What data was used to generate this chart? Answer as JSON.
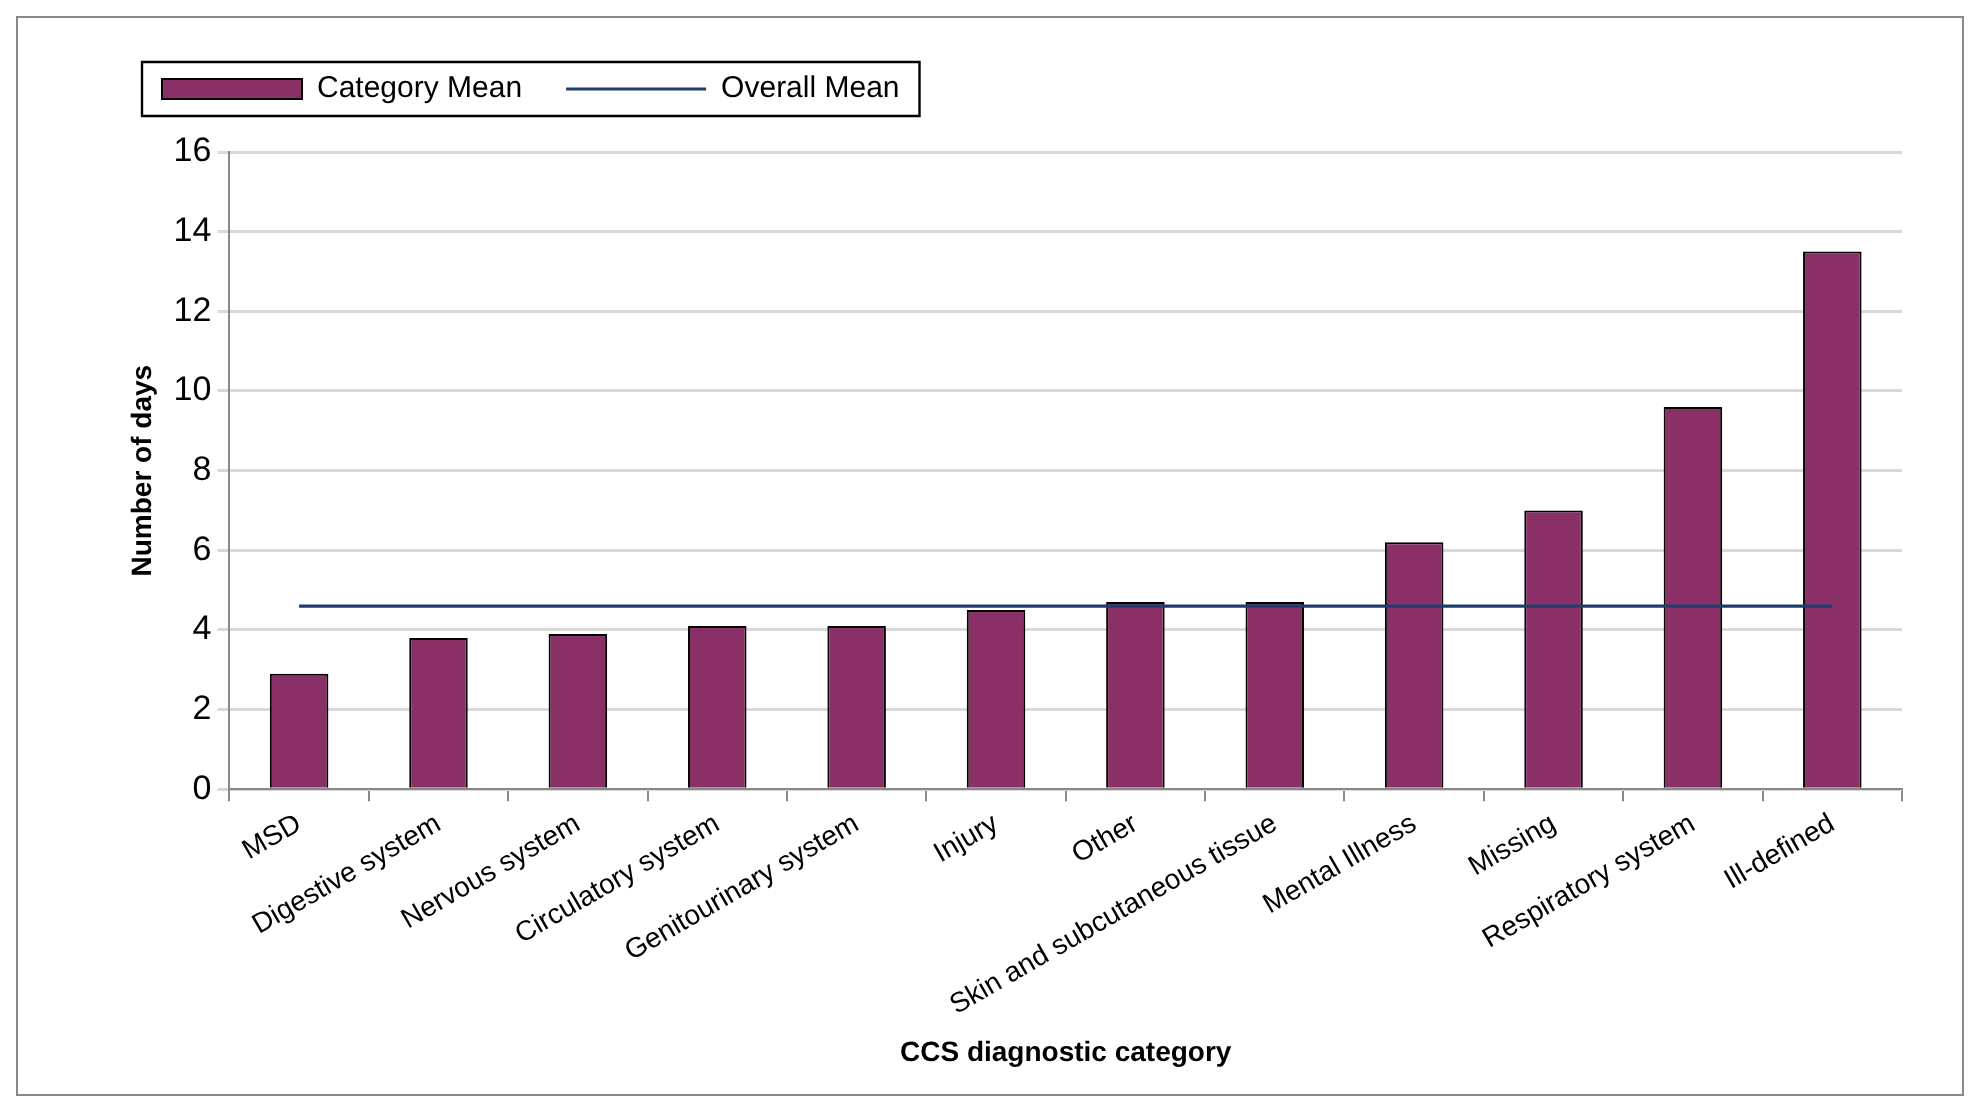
{
  "chart_data": {
    "type": "bar",
    "xlabel": "CCS diagnostic category",
    "ylabel": "Number of days",
    "categories": [
      "MSD",
      "Digestive system",
      "Nervous system",
      "Circulatory system",
      "Genitourinary system",
      "Injury",
      "Other",
      "Skin and subcutaneous tissue",
      "Mental Illness",
      "Missing",
      "Respiratory system",
      "Ill-defined"
    ],
    "series": [
      {
        "name": "Category Mean",
        "color": "#8b3067",
        "values": [
          2.9,
          3.8,
          3.9,
          4.1,
          4.1,
          4.5,
          4.7,
          4.7,
          6.2,
          7.0,
          9.6,
          13.5
        ]
      },
      {
        "name": "Overall Mean",
        "type": "line",
        "color": "#1f3d6b",
        "marker": "none",
        "values": [
          4.6,
          4.6,
          4.6,
          4.6,
          4.6,
          4.6,
          4.6,
          4.6,
          4.6,
          4.6,
          4.6,
          4.6
        ]
      }
    ],
    "ylim": [
      0,
      16
    ],
    "yticks": [
      0,
      2,
      4,
      6,
      8,
      10,
      12,
      14,
      16
    ],
    "grid": "y",
    "legend": "top left"
  }
}
